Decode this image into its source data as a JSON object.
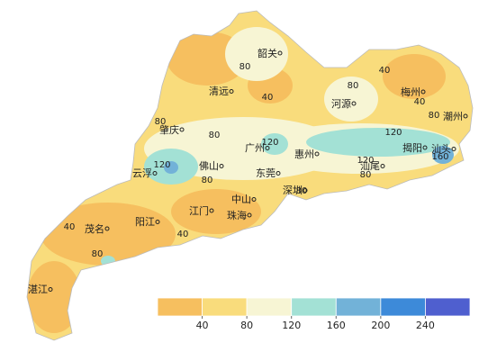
{
  "cities": [
    "韶关",
    "清远",
    "河源",
    "梅州",
    "潮州",
    "肇庆",
    "广州",
    "惠州",
    "揭阳",
    "汕头",
    "汕尾",
    "云浮",
    "佛山",
    "东莞",
    "深圳",
    "中山",
    "江门",
    "珠海",
    "阳江",
    "茂名",
    "湛江"
  ],
  "contour_labels": [
    80,
    40,
    40,
    80,
    40,
    80,
    80,
    80,
    120,
    120,
    120,
    120,
    80,
    160,
    80,
    80,
    40,
    40,
    80
  ],
  "legend": {
    "colors": [
      "#f6bf5f",
      "#f9dc7c",
      "#f7f5d4",
      "#a3e1d5",
      "#72b2d8",
      "#3d8ad9",
      "#4f5fcf"
    ],
    "ticks": [
      40,
      80,
      120,
      160,
      200,
      240
    ]
  }
}
